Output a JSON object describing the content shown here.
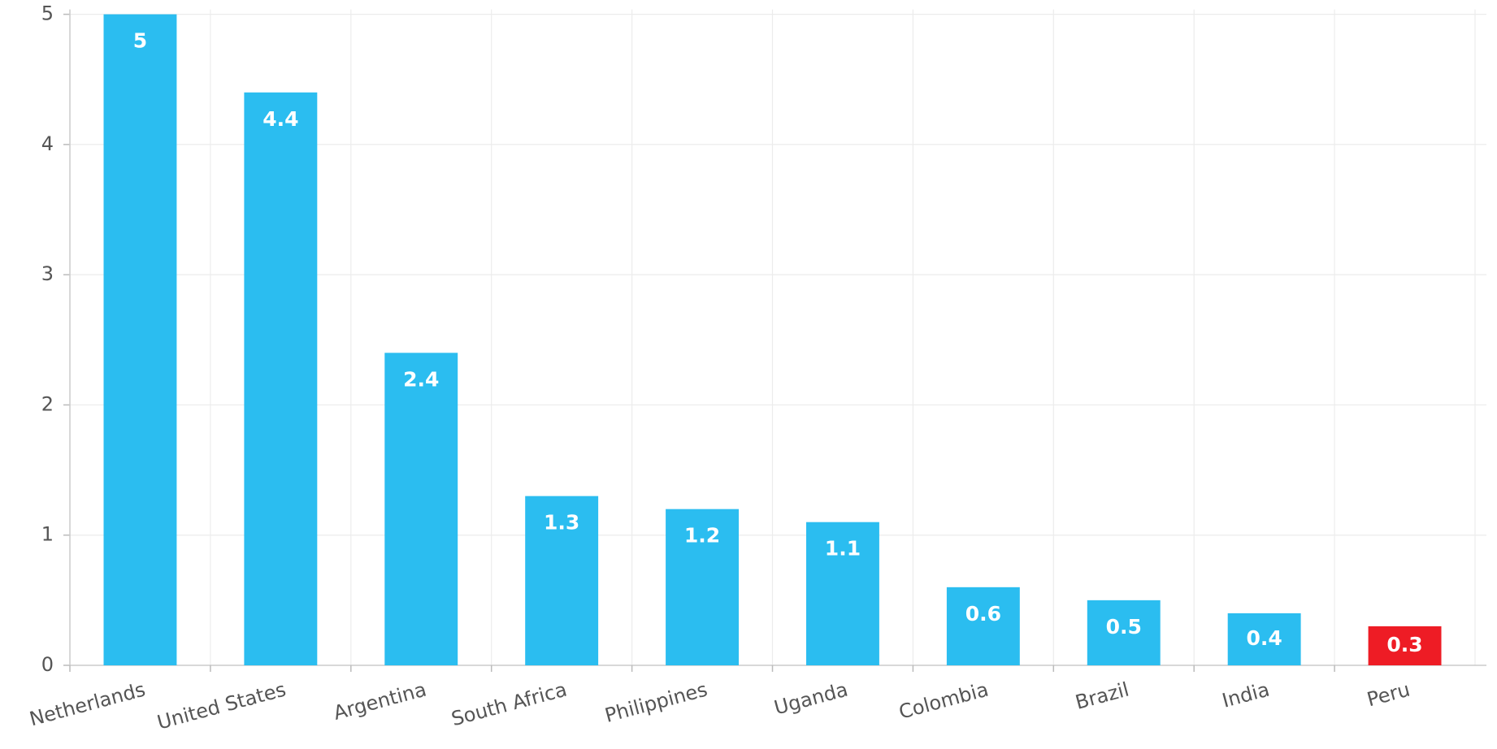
{
  "chart_data": {
    "type": "bar",
    "categories": [
      "Netherlands",
      "United States",
      "Argentina",
      "South Africa",
      "Philippines",
      "Uganda",
      "Colombia",
      "Brazil",
      "India",
      "Peru"
    ],
    "values": [
      5,
      4.4,
      2.4,
      1.3,
      1.2,
      1.1,
      0.6,
      0.5,
      0.4,
      0.3
    ],
    "colors": [
      "#2bbdf0",
      "#2bbdf0",
      "#2bbdf0",
      "#2bbdf0",
      "#2bbdf0",
      "#2bbdf0",
      "#2bbdf0",
      "#2bbdf0",
      "#2bbdf0",
      "#ee1c25"
    ],
    "ylim": [
      0,
      5
    ],
    "yticks": [
      0,
      1,
      2,
      3,
      4,
      5
    ],
    "grid": true
  }
}
